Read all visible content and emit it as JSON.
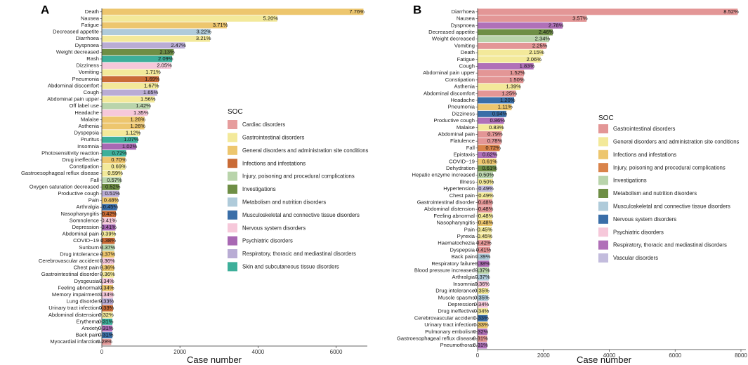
{
  "soc_colors": {
    "cardiac": "#E07B7B",
    "gi": "#E39696",
    "general": "#F2E7A0",
    "infections": "#D98F55",
    "injury": "#B8D3A8",
    "investigations": "#7B9A4E",
    "metabolism": "#B7D3DF",
    "musculoskeletal": "#9DC3D3",
    "nervous": "#F5C6D8",
    "psychiatric": "#B07DBB",
    "respiratory": "#B2A4CF",
    "skin": "#3AAF97",
    "vascular": "#C7C2E0",
    "pneumonia_dark": "#C9683A",
    "eatgen": "#EEC46A",
    "nervousdark": "#336EA8",
    "respdark": "#A668B5"
  },
  "chart_data": [
    {
      "panel_label": "A",
      "type": "bar",
      "orientation": "horizontal",
      "xlabel": "Case number",
      "xlim": [
        0,
        6800
      ],
      "xticks": [
        "0",
        "2000",
        "4000",
        "6000"
      ],
      "xtick_values": [
        0,
        2000,
        4000,
        6000
      ],
      "legend_title": "SOC",
      "legend": [
        {
          "label": "Cardiac disorders",
          "color": "#E69D9D"
        },
        {
          "label": "Gastrointestinal disorders",
          "color": "#F3E99A"
        },
        {
          "label": "General disorders and administration site conditions",
          "color": "#EDC66E"
        },
        {
          "label": "Infections and infestations",
          "color": "#C96B36"
        },
        {
          "label": "Injury, poisoning and procedural complications",
          "color": "#B9D4AB"
        },
        {
          "label": "Investigations",
          "color": "#6E8E45"
        },
        {
          "label": "Metabolism and nutrition disorders",
          "color": "#AFCBDA"
        },
        {
          "label": "Musculoskeletal and connective tissue disorders",
          "color": "#3A6EA8"
        },
        {
          "label": "Nervous system disorders",
          "color": "#F6C8DA"
        },
        {
          "label": "Psychiatric disorders",
          "color": "#A868B3"
        },
        {
          "label": "Respiratory, thoracic and mediastinal disorders",
          "color": "#B9ACD4"
        },
        {
          "label": "Skin and subcutaneous tissue disorders",
          "color": "#3DAF9A"
        }
      ],
      "bars": [
        {
          "name": "Death",
          "value": 6700,
          "pct": "7.76%",
          "color": "#EDC66E"
        },
        {
          "name": "Nausea",
          "value": 4490,
          "pct": "5.20%",
          "color": "#F3E99A"
        },
        {
          "name": "Fatigue",
          "value": 3200,
          "pct": "3.71%",
          "color": "#EDC66E"
        },
        {
          "name": "Decreased appetite",
          "value": 2780,
          "pct": "3.22%",
          "color": "#AFCBDA"
        },
        {
          "name": "Diarrhoea",
          "value": 2770,
          "pct": "3.21%",
          "color": "#F3E99A"
        },
        {
          "name": "Dyspnoea",
          "value": 2130,
          "pct": "2.47%",
          "color": "#B9ACD4"
        },
        {
          "name": "Weight decreased",
          "value": 1840,
          "pct": "2.13%",
          "color": "#6E8E45"
        },
        {
          "name": "Rash",
          "value": 1800,
          "pct": "2.09%",
          "color": "#3DAF9A"
        },
        {
          "name": "Dizziness",
          "value": 1770,
          "pct": "2.05%",
          "color": "#F6C8DA"
        },
        {
          "name": "Vomiting",
          "value": 1480,
          "pct": "1.71%",
          "color": "#F3E99A"
        },
        {
          "name": "Pneumonia",
          "value": 1460,
          "pct": "1.69%",
          "color": "#C96B36"
        },
        {
          "name": "Abdominal discomfort",
          "value": 1440,
          "pct": "1.67%",
          "color": "#F3E99A"
        },
        {
          "name": "Cough",
          "value": 1420,
          "pct": "1.65%",
          "color": "#B9ACD4"
        },
        {
          "name": "Abdominal pain upper",
          "value": 1350,
          "pct": "1.56%",
          "color": "#F3E99A"
        },
        {
          "name": "Off label use",
          "value": 1230,
          "pct": "1.42%",
          "color": "#B9D4AB"
        },
        {
          "name": "Headache",
          "value": 1170,
          "pct": "1.35%",
          "color": "#F6C8DA"
        },
        {
          "name": "Malaise",
          "value": 1090,
          "pct": "1.26%",
          "color": "#EDC66E"
        },
        {
          "name": "Asthenia",
          "value": 1090,
          "pct": "1.26%",
          "color": "#EDC66E"
        },
        {
          "name": "Dyspepsia",
          "value": 970,
          "pct": "1.12%",
          "color": "#F3E99A"
        },
        {
          "name": "Pruritus",
          "value": 920,
          "pct": "1.07%",
          "color": "#3DAF9A"
        },
        {
          "name": "Insomnia",
          "value": 880,
          "pct": "1.02%",
          "color": "#A868B3"
        },
        {
          "name": "Photosensitivity reaction",
          "value": 620,
          "pct": "0.72%",
          "color": "#3DAF9A"
        },
        {
          "name": "Drug ineffective",
          "value": 600,
          "pct": "0.70%",
          "color": "#EDC66E"
        },
        {
          "name": "Constipation",
          "value": 600,
          "pct": "0.69%",
          "color": "#F3E99A"
        },
        {
          "name": "Gastroesophageal reflux disease",
          "value": 510,
          "pct": "0.59%",
          "color": "#F3E99A"
        },
        {
          "name": "Fall",
          "value": 490,
          "pct": "0.57%",
          "color": "#B9D4AB"
        },
        {
          "name": "Oxygen saturation decreased",
          "value": 450,
          "pct": "0.52%",
          "color": "#6E8E45"
        },
        {
          "name": "Productive cough",
          "value": 440,
          "pct": "0.51%",
          "color": "#B9ACD4"
        },
        {
          "name": "Pain",
          "value": 410,
          "pct": "0.48%",
          "color": "#EDC66E"
        },
        {
          "name": "Arthralgia",
          "value": 390,
          "pct": "0.45%",
          "color": "#3A6EA8"
        },
        {
          "name": "Nasopharyngitis",
          "value": 360,
          "pct": "0.42%",
          "color": "#C96B36"
        },
        {
          "name": "Somnolence",
          "value": 350,
          "pct": "0.41%",
          "color": "#F6C8DA"
        },
        {
          "name": "Depression",
          "value": 350,
          "pct": "0.41%",
          "color": "#A868B3"
        },
        {
          "name": "Abdominal pain",
          "value": 340,
          "pct": "0.39%",
          "color": "#F3E99A"
        },
        {
          "name": "COVID−19",
          "value": 330,
          "pct": "0.38%",
          "color": "#C96B36"
        },
        {
          "name": "Sunburn",
          "value": 320,
          "pct": "0.37%",
          "color": "#B9D4AB"
        },
        {
          "name": "Drug intolerance",
          "value": 320,
          "pct": "0.37%",
          "color": "#EDC66E"
        },
        {
          "name": "Cerebrovascular accident",
          "value": 310,
          "pct": "0.36%",
          "color": "#F6C8DA"
        },
        {
          "name": "Chest pain",
          "value": 310,
          "pct": "0.36%",
          "color": "#EDC66E"
        },
        {
          "name": "Gastrointestinal disorder",
          "value": 310,
          "pct": "0.36%",
          "color": "#F3E99A"
        },
        {
          "name": "Dysgeusia",
          "value": 290,
          "pct": "0.34%",
          "color": "#F6C8DA"
        },
        {
          "name": "Feeling abnormal",
          "value": 290,
          "pct": "0.34%",
          "color": "#EDC66E"
        },
        {
          "name": "Memory impairment",
          "value": 290,
          "pct": "0.34%",
          "color": "#F6C8DA"
        },
        {
          "name": "Lung disorder",
          "value": 285,
          "pct": "0.33%",
          "color": "#B9ACD4"
        },
        {
          "name": "Urinary tract infection",
          "value": 285,
          "pct": "0.33%",
          "color": "#C96B36"
        },
        {
          "name": "Abdominal distension",
          "value": 275,
          "pct": "0.32%",
          "color": "#F3E99A"
        },
        {
          "name": "Erythema",
          "value": 270,
          "pct": "0.31%",
          "color": "#3DAF9A"
        },
        {
          "name": "Anxiety",
          "value": 270,
          "pct": "0.31%",
          "color": "#A868B3"
        },
        {
          "name": "Back pain",
          "value": 270,
          "pct": "0.31%",
          "color": "#3A6EA8"
        },
        {
          "name": "Myocardial infarction",
          "value": 240,
          "pct": "0.28%",
          "color": "#E69D9D"
        }
      ]
    },
    {
      "panel_label": "B",
      "type": "bar",
      "orientation": "horizontal",
      "xlabel": "Case number",
      "xlim": [
        0,
        8150
      ],
      "xticks": [
        "0",
        "2000",
        "4000",
        "6000",
        "8000"
      ],
      "xtick_values": [
        0,
        2000,
        4000,
        6000,
        8000
      ],
      "legend_title": "SOC",
      "legend": [
        {
          "label": "Gastrointestinal disorders",
          "color": "#E39696"
        },
        {
          "label": "General disorders and administration site conditions",
          "color": "#F3E99A"
        },
        {
          "label": "Infections and infestations",
          "color": "#EDC66E"
        },
        {
          "label": "Injury, poisoning and procedural complications",
          "color": "#D9834A"
        },
        {
          "label": "Investigations",
          "color": "#B9D4AB"
        },
        {
          "label": "Metabolism and nutrition disorders",
          "color": "#6E8E45"
        },
        {
          "label": "Musculoskeletal and connective tissue disorders",
          "color": "#AFCBDA"
        },
        {
          "label": "Nervous system disorders",
          "color": "#3A6EA8"
        },
        {
          "label": "Psychiatric disorders",
          "color": "#F6C8DA"
        },
        {
          "label": "Respiratory, thoracic and mediastinal disorders",
          "color": "#B070B8"
        },
        {
          "label": "Vascular disorders",
          "color": "#C3BCDD"
        }
      ],
      "bars": [
        {
          "name": "Diarrhoea",
          "value": 7900,
          "pct": "8.52%",
          "color": "#E39696"
        },
        {
          "name": "Nausea",
          "value": 3310,
          "pct": "3.57%",
          "color": "#E39696"
        },
        {
          "name": "Dyspnoea",
          "value": 2580,
          "pct": "2.78%",
          "color": "#B070B8"
        },
        {
          "name": "Decreased appetite",
          "value": 2280,
          "pct": "2.46%",
          "color": "#6E8E45"
        },
        {
          "name": "Weight decreased",
          "value": 2170,
          "pct": "2.34%",
          "color": "#B9D4AB"
        },
        {
          "name": "Vomiting",
          "value": 2090,
          "pct": "2.25%",
          "color": "#E39696"
        },
        {
          "name": "Death",
          "value": 1990,
          "pct": "2.15%",
          "color": "#F3E99A"
        },
        {
          "name": "Fatigue",
          "value": 1910,
          "pct": "2.06%",
          "color": "#F3E99A"
        },
        {
          "name": "Cough",
          "value": 1700,
          "pct": "1.83%",
          "color": "#B070B8"
        },
        {
          "name": "Abdominal pain upper",
          "value": 1410,
          "pct": "1.52%",
          "color": "#E39696"
        },
        {
          "name": "Constipation",
          "value": 1390,
          "pct": "1.50%",
          "color": "#E39696"
        },
        {
          "name": "Asthenia",
          "value": 1290,
          "pct": "1.39%",
          "color": "#F3E99A"
        },
        {
          "name": "Abdominal discomfort",
          "value": 1160,
          "pct": "1.25%",
          "color": "#E39696"
        },
        {
          "name": "Headache",
          "value": 1110,
          "pct": "1.20%",
          "color": "#3A6EA8"
        },
        {
          "name": "Pneumonia",
          "value": 1030,
          "pct": "1.11%",
          "color": "#EDC66E"
        },
        {
          "name": "Dizziness",
          "value": 870,
          "pct": "0.94%",
          "color": "#3A6EA8"
        },
        {
          "name": "Productive cough",
          "value": 800,
          "pct": "0.86%",
          "color": "#B070B8"
        },
        {
          "name": "Malaise",
          "value": 770,
          "pct": "0.83%",
          "color": "#F3E99A"
        },
        {
          "name": "Abdominal pain",
          "value": 730,
          "pct": "0.79%",
          "color": "#E39696"
        },
        {
          "name": "Flatulence",
          "value": 720,
          "pct": "0.78%",
          "color": "#E39696"
        },
        {
          "name": "Fall",
          "value": 670,
          "pct": "0.72%",
          "color": "#D9834A"
        },
        {
          "name": "Epistaxis",
          "value": 575,
          "pct": "0.62%",
          "color": "#B070B8"
        },
        {
          "name": "COVID−19",
          "value": 565,
          "pct": "0.61%",
          "color": "#EDC66E"
        },
        {
          "name": "Dehydration",
          "value": 565,
          "pct": "0.61%",
          "color": "#6E8E45"
        },
        {
          "name": "Hepatic enzyme increased",
          "value": 465,
          "pct": "0.50%",
          "color": "#B9D4AB"
        },
        {
          "name": "Illness",
          "value": 465,
          "pct": "0.50%",
          "color": "#F3E99A"
        },
        {
          "name": "Hypertension",
          "value": 455,
          "pct": "0.49%",
          "color": "#C3BCDD"
        },
        {
          "name": "Chest pain",
          "value": 455,
          "pct": "0.49%",
          "color": "#F3E99A"
        },
        {
          "name": "Gastrointestinal disorder",
          "value": 445,
          "pct": "0.48%",
          "color": "#E39696"
        },
        {
          "name": "Abdominal distension",
          "value": 445,
          "pct": "0.48%",
          "color": "#E39696"
        },
        {
          "name": "Feeling abnormal",
          "value": 445,
          "pct": "0.48%",
          "color": "#F3E99A"
        },
        {
          "name": "Nasopharyngitis",
          "value": 445,
          "pct": "0.48%",
          "color": "#EDC66E"
        },
        {
          "name": "Pain",
          "value": 420,
          "pct": "0.45%",
          "color": "#F3E99A"
        },
        {
          "name": "Pyrexia",
          "value": 420,
          "pct": "0.45%",
          "color": "#F3E99A"
        },
        {
          "name": "Haematochezia",
          "value": 390,
          "pct": "0.42%",
          "color": "#E39696"
        },
        {
          "name": "Dyspepsia",
          "value": 380,
          "pct": "0.41%",
          "color": "#E39696"
        },
        {
          "name": "Back pain",
          "value": 360,
          "pct": "0.39%",
          "color": "#AFCBDA"
        },
        {
          "name": "Respiratory failure",
          "value": 350,
          "pct": "0.38%",
          "color": "#B070B8"
        },
        {
          "name": "Blood pressure increased",
          "value": 345,
          "pct": "0.37%",
          "color": "#B9D4AB"
        },
        {
          "name": "Arthralgia",
          "value": 345,
          "pct": "0.37%",
          "color": "#AFCBDA"
        },
        {
          "name": "Insomnia",
          "value": 335,
          "pct": "0.36%",
          "color": "#F6C8DA"
        },
        {
          "name": "Drug intolerance",
          "value": 325,
          "pct": "0.35%",
          "color": "#F3E99A"
        },
        {
          "name": "Muscle spasms",
          "value": 325,
          "pct": "0.35%",
          "color": "#AFCBDA"
        },
        {
          "name": "Depression",
          "value": 315,
          "pct": "0.34%",
          "color": "#F6C8DA"
        },
        {
          "name": "Drug ineffective",
          "value": 315,
          "pct": "0.34%",
          "color": "#F3E99A"
        },
        {
          "name": "Cerebrovascular accident",
          "value": 305,
          "pct": "0.33%",
          "color": "#3A6EA8"
        },
        {
          "name": "Urinary tract infection",
          "value": 305,
          "pct": "0.33%",
          "color": "#EDC66E"
        },
        {
          "name": "Pulmonary embolism",
          "value": 295,
          "pct": "0.32%",
          "color": "#B070B8"
        },
        {
          "name": "Gastroesophageal reflux disease",
          "value": 285,
          "pct": "0.31%",
          "color": "#E39696"
        },
        {
          "name": "Pneumothorax",
          "value": 285,
          "pct": "0.31%",
          "color": "#B070B8"
        }
      ]
    }
  ]
}
